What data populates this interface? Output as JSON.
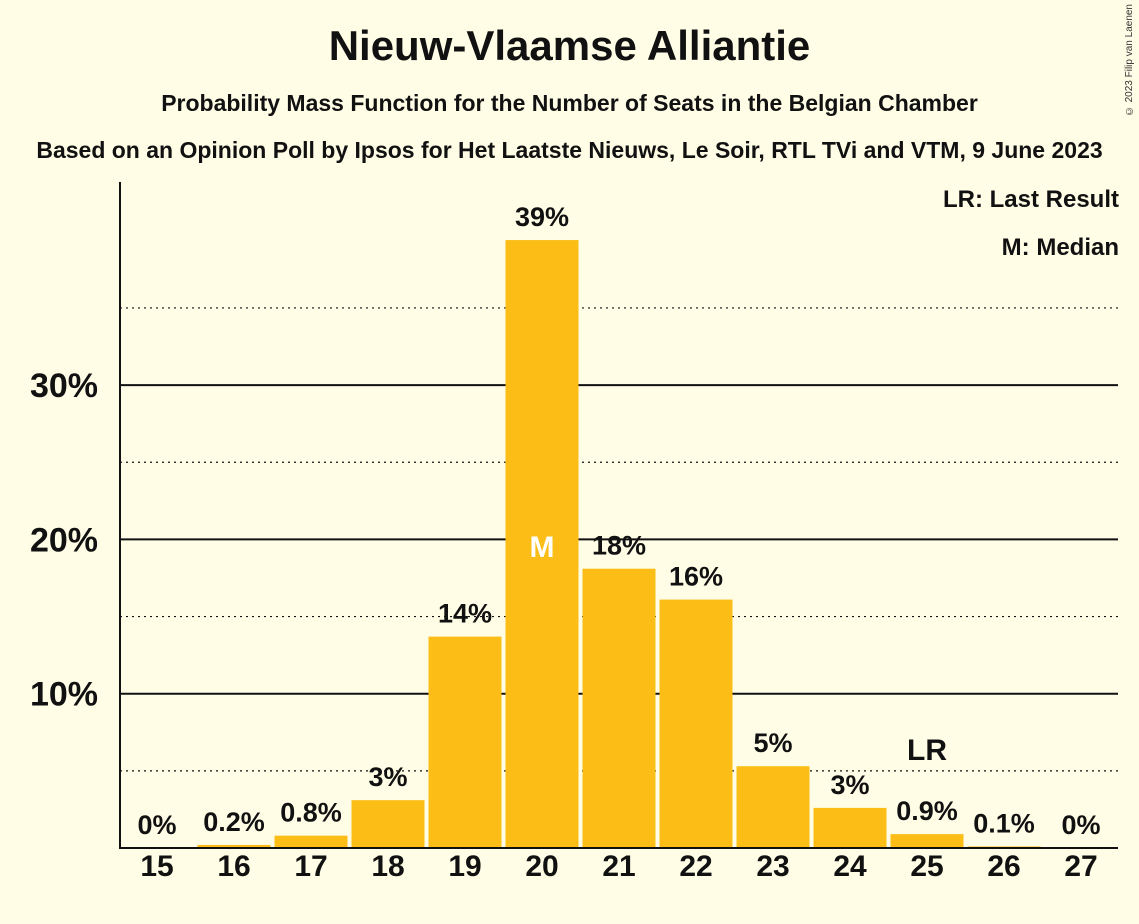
{
  "title": "Nieuw-Vlaamse Alliantie",
  "subtitle": "Probability Mass Function for the Number of Seats in the Belgian Chamber",
  "source": "Based on an Opinion Poll by Ipsos for Het Laatste Nieuws, Le Soir, RTL TVi and VTM, 9 June 2023",
  "copyright": "© 2023 Filip van Laenen",
  "legend": {
    "last_result": "LR: Last Result",
    "median": "M: Median"
  },
  "colors": {
    "bar": "#fbbd16",
    "background": "#fffde6",
    "text": "#111111"
  },
  "chart_data": {
    "type": "bar",
    "categories": [
      "15",
      "16",
      "17",
      "18",
      "19",
      "20",
      "21",
      "22",
      "23",
      "24",
      "25",
      "26",
      "27"
    ],
    "values": [
      0,
      0.2,
      0.8,
      3.1,
      13.7,
      39.4,
      18.1,
      16.1,
      5.3,
      2.6,
      0.9,
      0.1,
      0
    ],
    "data_labels": [
      "0%",
      "0.2%",
      "0.8%",
      "3%",
      "14%",
      "39%",
      "18%",
      "16%",
      "5%",
      "3%",
      "0.9%",
      "0.1%",
      "0%"
    ],
    "ylim": [
      0,
      43
    ],
    "yticks": [
      10,
      20,
      30
    ],
    "ytick_labels": [
      "10%",
      "20%",
      "30%"
    ],
    "minor_gridlines": [
      5,
      15,
      25,
      35
    ],
    "median_category": "20",
    "median_marker": "M",
    "last_result_category": "25",
    "last_result_marker": "LR",
    "grid": true,
    "legend_position": "top-right"
  }
}
